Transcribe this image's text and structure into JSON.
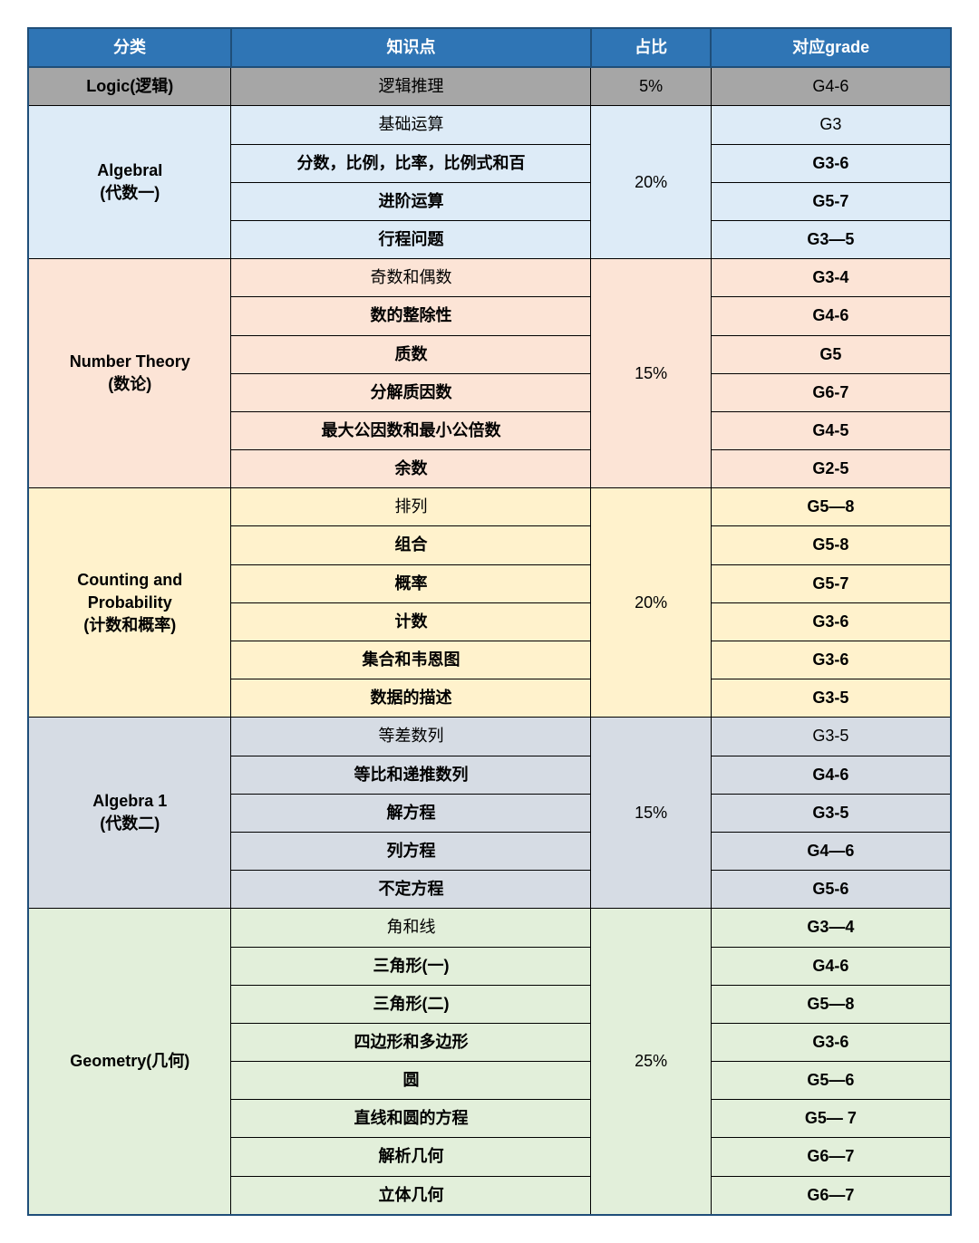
{
  "header": {
    "category": "分类",
    "topic": "知识点",
    "percent": "占比",
    "grade": "对应grade"
  },
  "colors": {
    "header_bg": "#2f75b5",
    "header_fg": "#ffffff",
    "border_dark": "#1f4e79"
  },
  "sections": [
    {
      "id": "logic",
      "category": "Logic(逻辑)",
      "percent": "5%",
      "bg": "#a6a6a6",
      "category_bold": true,
      "rows": [
        {
          "topic": "逻辑推理",
          "topic_bold": false,
          "grade": "G4-6",
          "grade_bold": false
        }
      ]
    },
    {
      "id": "algebra1",
      "category": "AlgebraI\n(代数一)",
      "percent": "20%",
      "bg": "#ddebf7",
      "category_bold": true,
      "rows": [
        {
          "topic": "基础运算",
          "topic_bold": false,
          "grade": "G3",
          "grade_bold": false
        },
        {
          "topic": "分数，比例，比率，比例式和百",
          "topic_bold": true,
          "grade": "G3-6",
          "grade_bold": true
        },
        {
          "topic": "进阶运算",
          "topic_bold": true,
          "grade": "G5-7",
          "grade_bold": true
        },
        {
          "topic": "行程问题",
          "topic_bold": true,
          "grade": "G3—5",
          "grade_bold": true
        }
      ]
    },
    {
      "id": "numtheory",
      "category": "Number Theory\n(数论)",
      "percent": "15%",
      "bg": "#fce4d6",
      "category_bold": true,
      "rows": [
        {
          "topic": "奇数和偶数",
          "topic_bold": false,
          "grade": "G3-4",
          "grade_bold": true
        },
        {
          "topic": "数的整除性",
          "topic_bold": true,
          "grade": "G4-6",
          "grade_bold": true
        },
        {
          "topic": "质数",
          "topic_bold": true,
          "grade": "G5",
          "grade_bold": true
        },
        {
          "topic": "分解质因数",
          "topic_bold": true,
          "grade": "G6-7",
          "grade_bold": true
        },
        {
          "topic": "最大公因数和最小公倍数",
          "topic_bold": true,
          "grade": "G4-5",
          "grade_bold": true
        },
        {
          "topic": "余数",
          "topic_bold": true,
          "grade": "G2-5",
          "grade_bold": true
        }
      ]
    },
    {
      "id": "counting",
      "category": "Counting and\nProbability\n(计数和概率)",
      "percent": "20%",
      "bg": "#fff2cc",
      "category_bold": true,
      "rows": [
        {
          "topic": "排列",
          "topic_bold": false,
          "grade": "G5—8",
          "grade_bold": true
        },
        {
          "topic": "组合",
          "topic_bold": true,
          "grade": "G5-8",
          "grade_bold": true
        },
        {
          "topic": "概率",
          "topic_bold": true,
          "grade": "G5-7",
          "grade_bold": true
        },
        {
          "topic": "计数",
          "topic_bold": true,
          "grade": "G3-6",
          "grade_bold": true
        },
        {
          "topic": "集合和韦恩图",
          "topic_bold": true,
          "grade": "G3-6",
          "grade_bold": true
        },
        {
          "topic": "数据的描述",
          "topic_bold": true,
          "grade": "G3-5",
          "grade_bold": true
        }
      ]
    },
    {
      "id": "algebra2",
      "category": "Algebra 1\n(代数二)",
      "percent": "15%",
      "bg": "#d6dce4",
      "category_bold": true,
      "rows": [
        {
          "topic": "等差数列",
          "topic_bold": false,
          "grade": "G3-5",
          "grade_bold": false
        },
        {
          "topic": "等比和递推数列",
          "topic_bold": true,
          "grade": "G4-6",
          "grade_bold": true
        },
        {
          "topic": "解方程",
          "topic_bold": true,
          "grade": "G3-5",
          "grade_bold": true
        },
        {
          "topic": "列方程",
          "topic_bold": true,
          "grade": "G4—6",
          "grade_bold": true
        },
        {
          "topic": "不定方程",
          "topic_bold": true,
          "grade": "G5-6",
          "grade_bold": true
        }
      ]
    },
    {
      "id": "geometry",
      "category": "Geometry(几何)",
      "percent": "25%",
      "bg": "#e2efda",
      "category_bold": true,
      "rows": [
        {
          "topic": "角和线",
          "topic_bold": false,
          "grade": "G3—4",
          "grade_bold": true
        },
        {
          "topic": "三角形(一)",
          "topic_bold": true,
          "grade": "G4-6",
          "grade_bold": true
        },
        {
          "topic": "三角形(二)",
          "topic_bold": true,
          "grade": "G5—8",
          "grade_bold": true
        },
        {
          "topic": "四边形和多边形",
          "topic_bold": true,
          "grade": "G3-6",
          "grade_bold": true
        },
        {
          "topic": "圆",
          "topic_bold": true,
          "grade": "G5—6",
          "grade_bold": true
        },
        {
          "topic": "直线和圆的方程",
          "topic_bold": true,
          "grade": "G5— 7",
          "grade_bold": true
        },
        {
          "topic": "解析几何",
          "topic_bold": true,
          "grade": "G6—7",
          "grade_bold": true
        },
        {
          "topic": "立体几何",
          "topic_bold": true,
          "grade": "G6—7",
          "grade_bold": true
        }
      ]
    }
  ]
}
